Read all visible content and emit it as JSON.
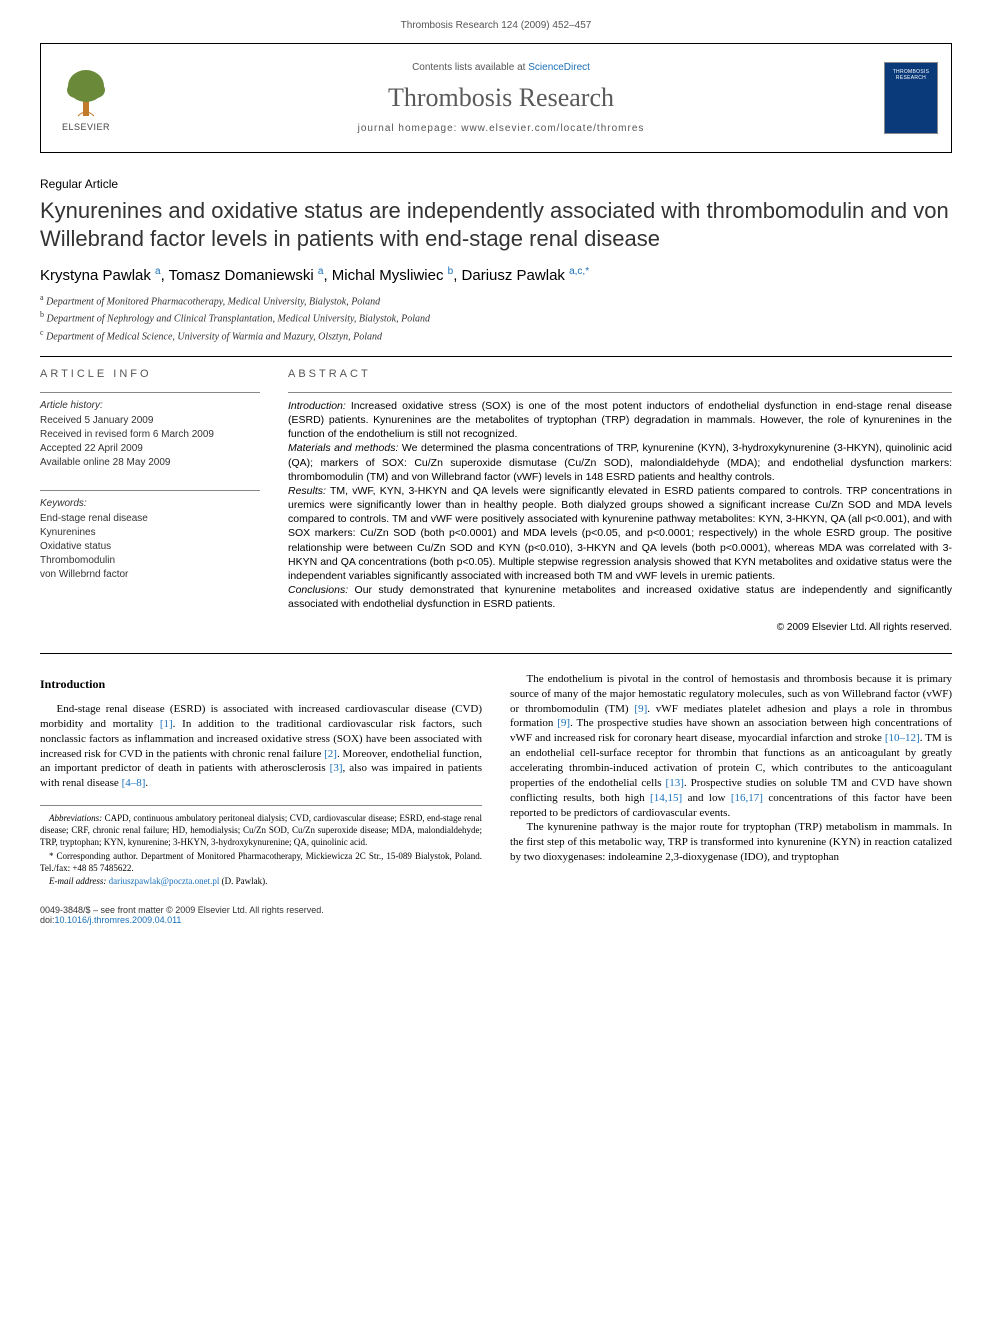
{
  "header": {
    "running_head": "Thrombosis Research 124 (2009) 452–457"
  },
  "banner": {
    "publisher_label": "ELSEVIER",
    "contents_prefix": "Contents lists available at ",
    "contents_link": "ScienceDirect",
    "journal_name": "Thrombosis Research",
    "homepage_prefix": "journal homepage: ",
    "homepage_url": "www.elsevier.com/locate/thromres",
    "cover_text": "THROMBOSIS RESEARCH"
  },
  "article": {
    "type": "Regular Article",
    "title": "Kynurenines and oxidative status are independently associated with thrombomodulin and von Willebrand factor levels in patients with end-stage renal disease",
    "authors_html": "Krystyna Pawlak <sup>a</sup>, Tomasz Domaniewski <sup>a</sup>, Michal Mysliwiec <sup>b</sup>, Dariusz Pawlak <sup>a,c,*</sup>",
    "affiliations": [
      {
        "sup": "a",
        "text": "Department of Monitored Pharmacotherapy, Medical University, Bialystok, Poland"
      },
      {
        "sup": "b",
        "text": "Department of Nephrology and Clinical Transplantation, Medical University, Bialystok, Poland"
      },
      {
        "sup": "c",
        "text": "Department of Medical Science, University of Warmia and Mazury, Olsztyn, Poland"
      }
    ]
  },
  "meta": {
    "info_heading": "ARTICLE INFO",
    "history_label": "Article history:",
    "history": [
      "Received 5 January 2009",
      "Received in revised form 6 March 2009",
      "Accepted 22 April 2009",
      "Available online 28 May 2009"
    ],
    "keywords_label": "Keywords:",
    "keywords": [
      "End-stage renal disease",
      "Kynurenines",
      "Oxidative status",
      "Thrombomodulin",
      "von Willebrnd factor"
    ]
  },
  "abstract": {
    "heading": "ABSTRACT",
    "introduction_label": "Introduction:",
    "introduction": " Increased oxidative stress (SOX) is one of the most potent inductors of endothelial dysfunction in end-stage renal disease (ESRD) patients. Kynurenines are the metabolites of tryptophan (TRP) degradation in mammals. However, the role of kynurenines in the function of the endothelium is still not recognized.",
    "methods_label": "Materials and methods:",
    "methods": " We determined the plasma concentrations of TRP, kynurenine (KYN), 3-hydroxykynurenine (3-HKYN), quinolinic acid (QA); markers of SOX: Cu/Zn superoxide dismutase (Cu/Zn SOD), malondialdehyde (MDA); and endothelial dysfunction markers: thrombomodulin (TM) and von Willebrand factor (vWF) levels in 148 ESRD patients and healthy controls.",
    "results_label": "Results:",
    "results": " TM, vWF, KYN, 3-HKYN and QA levels were significantly elevated in ESRD patients compared to controls. TRP concentrations in uremics were significantly lower than in healthy people. Both dialyzed groups showed a significant increase Cu/Zn SOD and MDA levels compared to controls. TM and vWF were positively associated with kynurenine pathway metabolites: KYN, 3-HKYN, QA (all p<0.001), and with SOX markers: Cu/Zn SOD (both p<0.0001) and MDA levels (p<0.05, and p<0.0001; respectively) in the whole ESRD group. The positive relationship were between Cu/Zn SOD and KYN (p<0.010), 3-HKYN and QA levels (both p<0.0001), whereas MDA was correlated with 3-HKYN and QA concentrations (both p<0.05). Multiple stepwise regression analysis showed that KYN metabolites and oxidative status were the independent variables significantly associated with increased both TM and vWF levels in uremic patients.",
    "conclusions_label": "Conclusions:",
    "conclusions": " Our study demonstrated that kynurenine metabolites and increased oxidative status are independently and significantly associated with endothelial dysfunction in ESRD patients.",
    "copyright": "© 2009 Elsevier Ltd. All rights reserved."
  },
  "body": {
    "intro_heading": "Introduction",
    "para1": "End-stage renal disease (ESRD) is associated with increased cardiovascular disease (CVD) morbidity and mortality [1]. In addition to the traditional cardiovascular risk factors, such nonclassic factors as inflammation and increased oxidative stress (SOX) have been associated with increased risk for CVD in the patients with chronic renal failure [2]. Moreover, endothelial function, an important predictor of death in patients with atherosclerosis [3], also was impaired in patients with renal disease [4–8].",
    "para2": "The endothelium is pivotal in the control of hemostasis and thrombosis because it is primary source of many of the major hemostatic regulatory molecules, such as von Willebrand factor (vWF) or thrombomodulin (TM) [9]. vWF mediates platelet adhesion and plays a role in thrombus formation [9]. The prospective studies have shown an association between high concentrations of vWF and increased risk for coronary heart disease, myocardial infarction and stroke [10–12]. TM is an endothelial cell-surface receptor for thrombin that functions as an anticoagulant by greatly accelerating thrombin-induced activation of protein C, which contributes to the anticoagulant properties of the endothelial cells [13]. Prospective studies on soluble TM and CVD have shown conflicting results, both high [14,15] and low [16,17] concentrations of this factor have been reported to be predictors of cardiovascular events.",
    "para3": "The kynurenine pathway is the major route for tryptophan (TRP) metabolism in mammals. In the first step of this metabolic way, TRP is transformed into kynurenine (KYN) in reaction catalized by two dioxygenases: indoleamine 2,3-dioxygenase (IDO), and tryptophan"
  },
  "footnotes": {
    "abbr_label": "Abbreviations:",
    "abbr": " CAPD, continuous ambulatory peritoneal dialysis; CVD, cardiovascular disease; ESRD, end-stage renal disease; CRF, chronic renal failure; HD, hemodialysis; Cu/Zn SOD, Cu/Zn superoxide disease; MDA, malondialdehyde; TRP, tryptophan; KYN, kynurenine; 3-HKYN, 3-hydroxykynurenine; QA, quinolinic acid.",
    "corresponding": "* Corresponding author. Department of Monitored Pharmacotherapy, Mickiewicza 2C Str., 15-089 Bialystok, Poland. Tel./fax: +48 85 7485622.",
    "email_label": "E-mail address:",
    "email": "dariuszpawlak@poczta.onet.pl",
    "email_suffix": " (D. Pawlak)."
  },
  "footer": {
    "front_matter": "0049-3848/$ – see front matter © 2009 Elsevier Ltd. All rights reserved.",
    "doi_prefix": "doi:",
    "doi": "10.1016/j.thromres.2009.04.011"
  },
  "refs": {
    "r1": "[1]",
    "r2": "[2]",
    "r3": "[3]",
    "r4_8": "[4–8]",
    "r9a": "[9]",
    "r9b": "[9]",
    "r10_12": "[10–12]",
    "r13": "[13]",
    "r14_15": "[14,15]",
    "r16_17": "[16,17]"
  },
  "colors": {
    "link": "#1a6fb8",
    "cover_bg": "#0b3a7a",
    "text_muted": "#555555"
  }
}
